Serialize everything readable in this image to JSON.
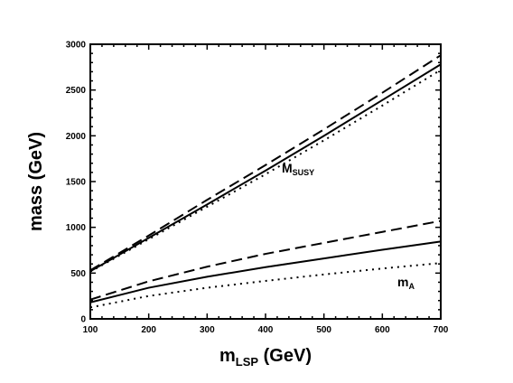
{
  "chart_data": {
    "type": "line",
    "xlabel": {
      "main": "m",
      "sub": "LSP",
      "rest": " (GeV)"
    },
    "ylabel": "mass (GeV)",
    "xlim": [
      100,
      700
    ],
    "ylim": [
      0,
      3000
    ],
    "xticks": [
      "100",
      "200",
      "300",
      "400",
      "500",
      "600",
      "700"
    ],
    "yticks": [
      "0",
      "500",
      "1000",
      "1500",
      "2000",
      "2500",
      "3000"
    ],
    "annotations": [
      {
        "id": "msusy",
        "main": "M",
        "sub": "SUSY"
      },
      {
        "id": "ma",
        "main": "m",
        "sub": "A"
      }
    ],
    "grid": false,
    "series": [
      {
        "group": "M_SUSY",
        "style": "solid",
        "x": [
          100,
          200,
          300,
          400,
          500,
          600,
          700
        ],
        "y": [
          520,
          885,
          1250,
          1620,
          2000,
          2390,
          2780
        ]
      },
      {
        "group": "M_SUSY",
        "style": "dashed",
        "x": [
          100,
          200,
          300,
          400,
          500,
          600,
          700
        ],
        "y": [
          530,
          910,
          1300,
          1680,
          2070,
          2470,
          2880
        ]
      },
      {
        "group": "M_SUSY",
        "style": "dotted",
        "x": [
          100,
          200,
          300,
          400,
          500,
          600,
          700
        ],
        "y": [
          515,
          870,
          1225,
          1580,
          1950,
          2330,
          2720
        ]
      },
      {
        "group": "m_A",
        "style": "solid",
        "x": [
          100,
          200,
          300,
          400,
          500,
          600,
          700
        ],
        "y": [
          180,
          340,
          460,
          565,
          660,
          755,
          845
        ]
      },
      {
        "group": "m_A",
        "style": "dashed",
        "x": [
          100,
          200,
          300,
          400,
          500,
          600,
          700
        ],
        "y": [
          210,
          410,
          570,
          710,
          830,
          950,
          1070
        ]
      },
      {
        "group": "m_A",
        "style": "dotted",
        "x": [
          100,
          200,
          300,
          400,
          500,
          600,
          700
        ],
        "y": [
          125,
          250,
          340,
          415,
          485,
          550,
          610
        ]
      }
    ]
  }
}
